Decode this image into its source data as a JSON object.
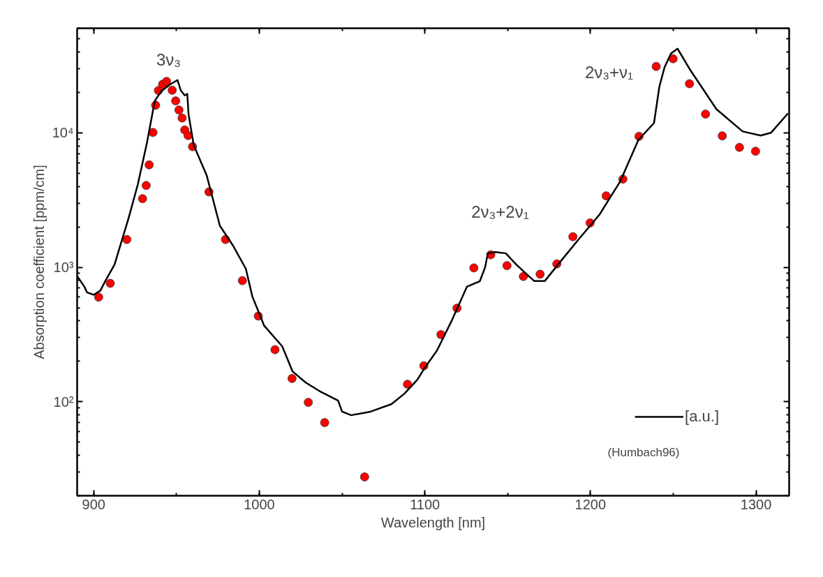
{
  "chart_data": {
    "type": "scatter",
    "xlabel": "Wavelength [nm]",
    "ylabel": "Absorption coefficient [ppm/cm]",
    "log": "y",
    "xlim": [
      890,
      1320
    ],
    "ylim": [
      20,
      60000
    ],
    "xticks": [
      900,
      1000,
      1100,
      1200,
      1300
    ],
    "yticks": [
      {
        "value": 100,
        "label": "10²"
      },
      {
        "value": 1000,
        "label": "10³"
      },
      {
        "value": 10000,
        "label": "10⁴"
      }
    ],
    "grid": false,
    "legend": "bottom right",
    "series": [
      {
        "marker": "circle",
        "color": "#ff0000",
        "x": [
          903,
          910,
          920,
          929.5,
          931.7,
          933.5,
          935.8,
          937.4,
          939.1,
          941.6,
          944,
          947.4,
          949.5,
          951.5,
          953.4,
          955,
          957,
          959.7,
          969.6,
          979.6,
          989.8,
          999.4,
          1009.5,
          1019.8,
          1029.6,
          1039.5,
          1063.6,
          1089.5,
          1099.4,
          1109.7,
          1119.4,
          1129.6,
          1139.8,
          1149.6,
          1159.5,
          1169.6,
          1179.7,
          1189.4,
          1199.8,
          1209.5,
          1219.6,
          1229.3,
          1239.7,
          1249.9,
          1259.8,
          1269.5,
          1279.6,
          1290,
          1299.7
        ],
        "values": [
          600,
          760,
          1610,
          3240,
          4060,
          5780,
          10070,
          16070,
          20650,
          23000,
          24150,
          20750,
          17300,
          14800,
          12900,
          10500,
          9560,
          7900,
          3640,
          1610,
          796,
          434,
          244,
          149,
          99,
          70,
          27.6,
          135,
          185,
          316,
          497,
          990,
          1240,
          1030,
          855,
          889,
          1060,
          1690,
          2140,
          3400,
          4530,
          9420,
          31200,
          35600,
          23200,
          13800,
          9510,
          7800,
          7300
        ]
      },
      {
        "type": "line",
        "name": "[a.u.]",
        "color": "#000000",
        "line_style": "solid",
        "x": [
          890,
          894.3,
          896,
          900,
          904,
          907,
          912.6,
          921.2,
          926.7,
          932.2,
          936.9,
          940.8,
          946.3,
          950.6,
          952.6,
          955,
          956.5,
          957.3,
          960.4,
          968.3,
          976.2,
          984,
          991.9,
          995.8,
          1002.9,
          1013.9,
          1020.1,
          1028,
          1037.4,
          1047.6,
          1050,
          1055.5,
          1067.3,
          1079.8,
          1087.7,
          1095.5,
          1100.2,
          1107.3,
          1116,
          1125.4,
          1133.2,
          1136.4,
          1138,
          1142.6,
          1148.9,
          1155.2,
          1161.4,
          1166.1,
          1172.4,
          1181.8,
          1192.8,
          1205.4,
          1218,
          1229,
          1238.4,
          1241.6,
          1244.7,
          1248.6,
          1252.6,
          1260.4,
          1268.3,
          1276.1,
          1291.9,
          1302.8,
          1309.1,
          1319.3
        ],
        "values": [
          860,
          720,
          650,
          625,
          670,
          790,
          1050,
          2350,
          4160,
          8480,
          17300,
          20400,
          23000,
          24700,
          20700,
          19000,
          19500,
          13700,
          8100,
          4800,
          2040,
          1460,
          975,
          607,
          369,
          258,
          168,
          139,
          118,
          102,
          84.5,
          79.4,
          84.5,
          96,
          115,
          146,
          181,
          240,
          396,
          717,
          788,
          1000,
          1270,
          1300,
          1270,
          1050,
          890,
          790,
          790,
          1100,
          1610,
          2460,
          4360,
          8890,
          11850,
          22000,
          30600,
          38900,
          42300,
          29200,
          20900,
          15000,
          10250,
          9560,
          10030,
          13960
        ]
      }
    ],
    "annotations": [
      "3ν₃",
      "2ν₃+2ν₁",
      "2ν₃+ν₁",
      "(Humbach96)"
    ]
  }
}
